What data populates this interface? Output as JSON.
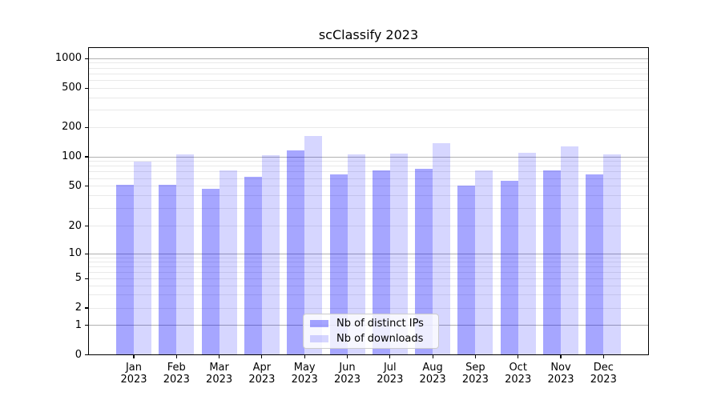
{
  "title": "scClassify 2023",
  "colors": {
    "bar_base": "#0000ff",
    "ip_opacity": 0.35,
    "dl_opacity": 0.16,
    "major_grid": "#b0b0b0",
    "minor_grid": "#e9e9e9",
    "axis": "#000000"
  },
  "legend": {
    "position": "lower center"
  },
  "chart_data": {
    "type": "bar",
    "title": "scClassify 2023",
    "categories": [
      "Jan",
      "Feb",
      "Mar",
      "Apr",
      "May",
      "Jun",
      "Jul",
      "Aug",
      "Sep",
      "Oct",
      "Nov",
      "Dec"
    ],
    "year_label": "2023",
    "series": [
      {
        "name": "Nb of distinct IPs",
        "values": [
          52,
          52,
          47,
          62,
          116,
          66,
          72,
          76,
          51,
          57,
          73,
          66
        ]
      },
      {
        "name": "Nb of downloads",
        "values": [
          90,
          106,
          72,
          103,
          163,
          106,
          107,
          138,
          73,
          110,
          128,
          105
        ]
      }
    ],
    "xlabel": "",
    "ylabel": "",
    "yscale": "symlog",
    "yticks": [
      0,
      1,
      2,
      5,
      10,
      20,
      50,
      100,
      200,
      500,
      1000
    ],
    "ylim": [
      0,
      1300
    ],
    "grid": "horizontal, log minors",
    "legend_position": "lower center"
  }
}
